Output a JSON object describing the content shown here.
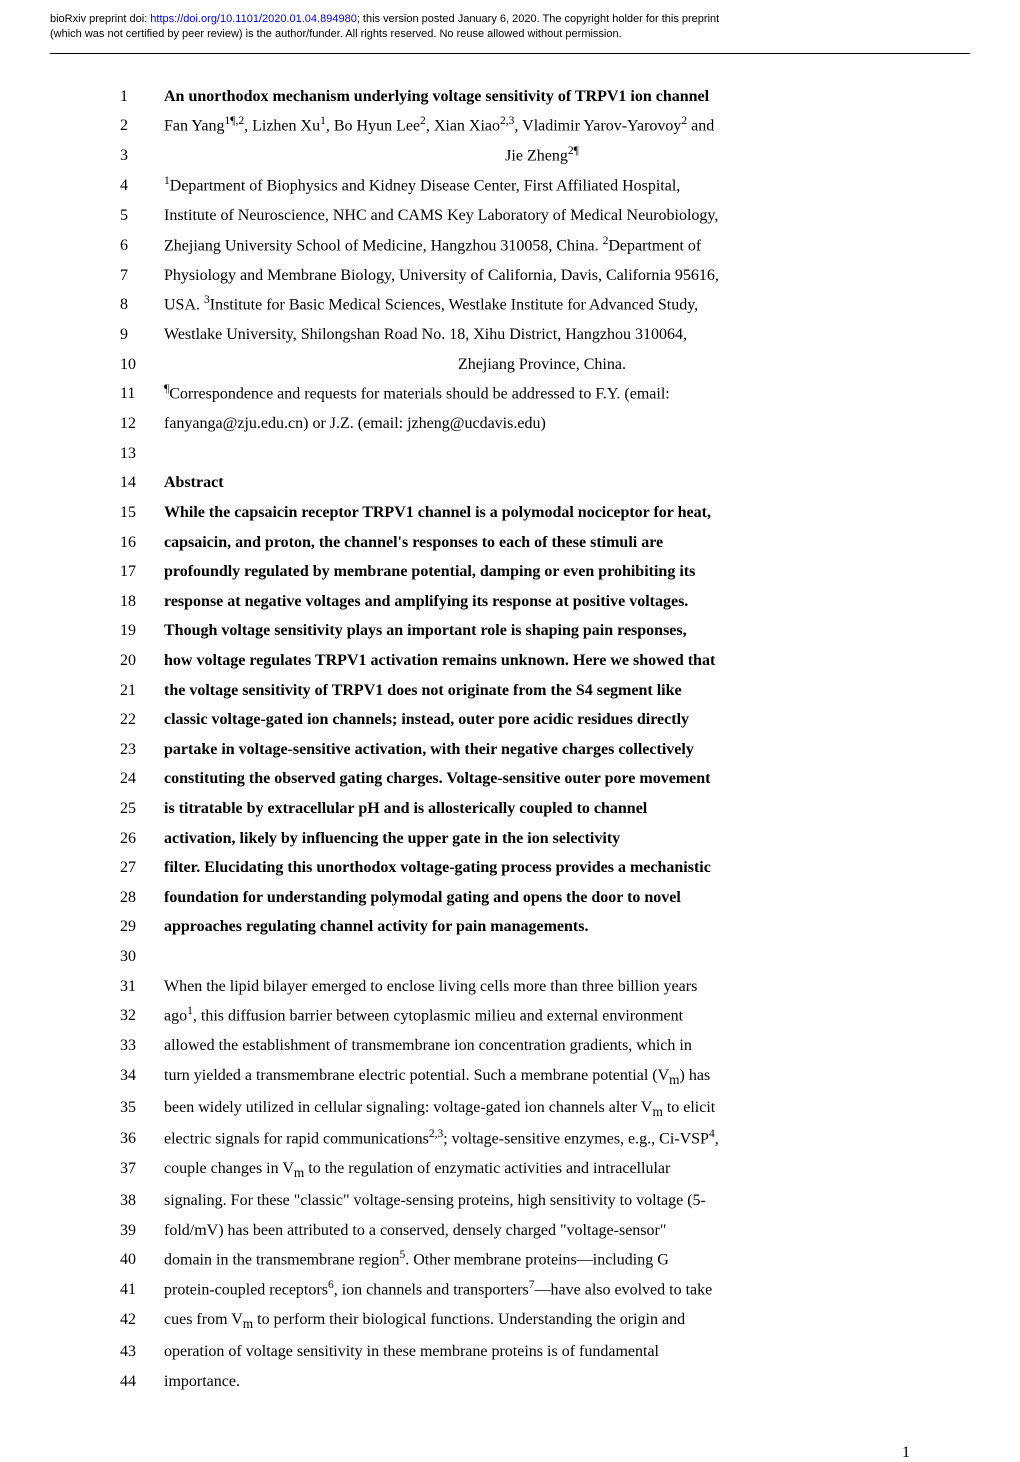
{
  "header": {
    "line1_prefix": "bioRxiv preprint doi: ",
    "doi_url": "https://doi.org/10.1101/2020.01.04.894980",
    "line1_suffix": "; this version posted January 6, 2020. The copyright holder for this preprint",
    "line2": "(which was not certified by peer review) is the author/funder. All rights reserved. No reuse allowed without permission."
  },
  "lines": {
    "l1": "An unorthodox mechanism underlying voltage sensitivity of TRPV1 ion channel",
    "l2": "Fan Yang<sup>1¶,2</sup>, Lizhen Xu<sup>1</sup>, Bo Hyun Lee<sup>2</sup>, Xian Xiao<sup>2,3</sup>, Vladimir Yarov-Yarovoy<sup>2</sup> and",
    "l3": "Jie Zheng<sup>2¶</sup>",
    "l4": "<sup>1</sup>Department of Biophysics and Kidney Disease Center, First Affiliated Hospital,",
    "l5": "Institute of Neuroscience, NHC and CAMS Key Laboratory of Medical Neurobiology,",
    "l6": "Zhejiang University School of Medicine, Hangzhou 310058, China. <sup>2</sup>Department of",
    "l7": "Physiology and Membrane Biology, University of California, Davis, California 95616,",
    "l8": "USA. <sup>3</sup>Institute for Basic Medical Sciences, Westlake Institute for Advanced Study,",
    "l9": "Westlake University, Shilongshan Road No. 18, Xihu District, Hangzhou 310064,",
    "l10": "Zhejiang Province, China.",
    "l11": "<sup>¶</sup>Correspondence and requests for materials should be addressed to F.Y. (email:",
    "l12": "fanyanga@zju.edu.cn) or J.Z. (email: jzheng@ucdavis.edu)",
    "l13": "",
    "l14": "Abstract",
    "l15": "While the capsaicin receptor TRPV1 channel is a polymodal nociceptor for heat,",
    "l16": "capsaicin, and proton, the channel's responses to each of these stimuli are",
    "l17": "profoundly regulated by membrane potential, damping or even prohibiting its",
    "l18": "response at negative voltages and amplifying its response at positive voltages.",
    "l19": "Though voltage sensitivity plays an important role is shaping pain responses,",
    "l20": "how voltage regulates TRPV1 activation remains unknown. Here we showed that",
    "l21": "the voltage sensitivity of TRPV1 does not originate from the S4 segment like",
    "l22": "classic voltage-gated ion channels; instead, outer pore acidic residues directly",
    "l23": "partake in voltage-sensitive activation, with their negative charges collectively",
    "l24": "constituting the observed gating charges. Voltage-sensitive outer pore movement",
    "l25": "is titratable by extracellular pH and is allosterically coupled to channel",
    "l26": "activation, likely by influencing the upper gate in the ion selectivity",
    "l27": "filter. Elucidating this unorthodox voltage-gating process provides a mechanistic",
    "l28": "foundation for understanding polymodal gating and opens the door to novel",
    "l29": "approaches regulating channel activity for pain managements.",
    "l30": "",
    "l31": "When the lipid bilayer emerged to enclose living cells more than three billion years",
    "l32": "ago<sup>1</sup>, this diffusion barrier between cytoplasmic milieu and external environment",
    "l33": "allowed the establishment of transmembrane ion concentration gradients, which in",
    "l34": "turn yielded a transmembrane electric potential. Such a membrane potential (V<sub>m</sub>) has",
    "l35": "been widely utilized in cellular signaling: voltage-gated ion channels alter V<sub>m</sub> to elicit",
    "l36": "electric signals for rapid communications<sup>2,3</sup>; voltage-sensitive enzymes, e.g., Ci-VSP<sup>4</sup>,",
    "l37": "couple changes in V<sub>m</sub> to the regulation of enzymatic activities and intracellular",
    "l38": "signaling. For these \"classic\" voltage-sensing proteins, high sensitivity to voltage (5-",
    "l39": "fold/mV) has been attributed to a conserved, densely charged \"voltage-sensor\"",
    "l40": "domain in the transmembrane region<sup>5</sup>. Other membrane proteins—including G",
    "l41": "protein-coupled receptors<sup>6</sup>, ion channels and transporters<sup>7</sup>—have also evolved to take",
    "l42": "cues from V<sub>m</sub> to perform their biological functions. Understanding the origin and",
    "l43": "operation of voltage sensitivity in these membrane proteins is of fundamental",
    "l44": "importance."
  },
  "line_meta": {
    "bold_lines": [
      1,
      14,
      15,
      16,
      17,
      18,
      19,
      20,
      21,
      22,
      23,
      24,
      25,
      26,
      27,
      28,
      29
    ],
    "center_lines": [
      3,
      10
    ]
  },
  "page_number": "1"
}
